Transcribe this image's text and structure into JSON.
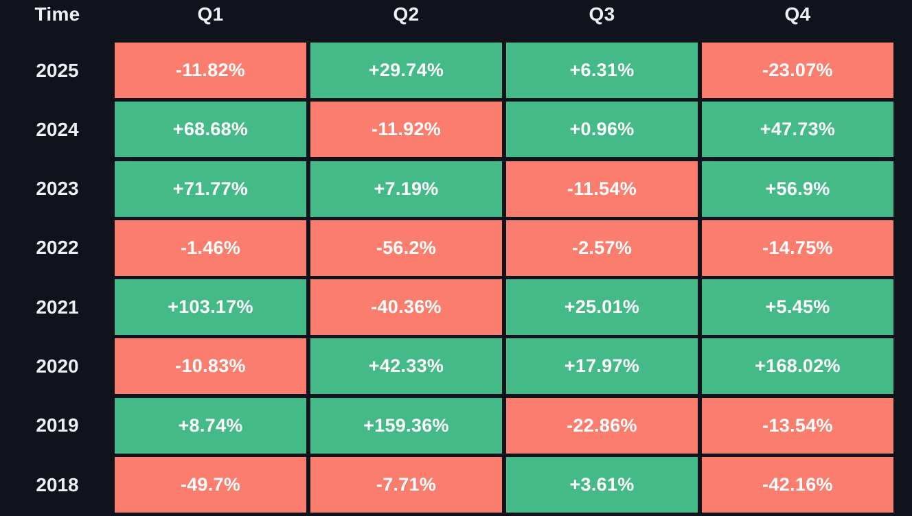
{
  "colors": {
    "background": "#10131c",
    "positive": "#45ba89",
    "negative": "#fa7d6e",
    "header_text": "#edf0f5",
    "cell_text": "#fdfefe"
  },
  "table": {
    "header": {
      "time_label": "Time",
      "quarters": [
        "Q1",
        "Q2",
        "Q3",
        "Q4"
      ]
    },
    "rows": [
      {
        "year": "2025",
        "cells": [
          {
            "text": "-11.82%",
            "sign": "neg"
          },
          {
            "text": "+29.74%",
            "sign": "pos"
          },
          {
            "text": "+6.31%",
            "sign": "pos"
          },
          {
            "text": "-23.07%",
            "sign": "neg"
          }
        ]
      },
      {
        "year": "2024",
        "cells": [
          {
            "text": "+68.68%",
            "sign": "pos"
          },
          {
            "text": "-11.92%",
            "sign": "neg"
          },
          {
            "text": "+0.96%",
            "sign": "pos"
          },
          {
            "text": "+47.73%",
            "sign": "pos"
          }
        ]
      },
      {
        "year": "2023",
        "cells": [
          {
            "text": "+71.77%",
            "sign": "pos"
          },
          {
            "text": "+7.19%",
            "sign": "pos"
          },
          {
            "text": "-11.54%",
            "sign": "neg"
          },
          {
            "text": "+56.9%",
            "sign": "pos"
          }
        ]
      },
      {
        "year": "2022",
        "cells": [
          {
            "text": "-1.46%",
            "sign": "neg"
          },
          {
            "text": "-56.2%",
            "sign": "neg"
          },
          {
            "text": "-2.57%",
            "sign": "neg"
          },
          {
            "text": "-14.75%",
            "sign": "neg"
          }
        ]
      },
      {
        "year": "2021",
        "cells": [
          {
            "text": "+103.17%",
            "sign": "pos"
          },
          {
            "text": "-40.36%",
            "sign": "neg"
          },
          {
            "text": "+25.01%",
            "sign": "pos"
          },
          {
            "text": "+5.45%",
            "sign": "pos"
          }
        ]
      },
      {
        "year": "2020",
        "cells": [
          {
            "text": "-10.83%",
            "sign": "neg"
          },
          {
            "text": "+42.33%",
            "sign": "pos"
          },
          {
            "text": "+17.97%",
            "sign": "pos"
          },
          {
            "text": "+168.02%",
            "sign": "pos"
          }
        ]
      },
      {
        "year": "2019",
        "cells": [
          {
            "text": "+8.74%",
            "sign": "pos"
          },
          {
            "text": "+159.36%",
            "sign": "pos"
          },
          {
            "text": "-22.86%",
            "sign": "neg"
          },
          {
            "text": "-13.54%",
            "sign": "neg"
          }
        ]
      },
      {
        "year": "2018",
        "cells": [
          {
            "text": "-49.7%",
            "sign": "neg"
          },
          {
            "text": "-7.71%",
            "sign": "neg"
          },
          {
            "text": "+3.61%",
            "sign": "pos"
          },
          {
            "text": "-42.16%",
            "sign": "neg"
          }
        ]
      }
    ]
  },
  "chart_data": {
    "type": "heatmap",
    "x_categories": [
      "Q1",
      "Q2",
      "Q3",
      "Q4"
    ],
    "y_categories": [
      "2025",
      "2024",
      "2023",
      "2022",
      "2021",
      "2020",
      "2019",
      "2018"
    ],
    "values_pct": [
      [
        -11.82,
        29.74,
        6.31,
        -23.07
      ],
      [
        68.68,
        -11.92,
        0.96,
        47.73
      ],
      [
        71.77,
        7.19,
        -11.54,
        56.9
      ],
      [
        -1.46,
        -56.2,
        -2.57,
        -14.75
      ],
      [
        103.17,
        -40.36,
        25.01,
        5.45
      ],
      [
        -10.83,
        42.33,
        17.97,
        168.02
      ],
      [
        8.74,
        159.36,
        -22.86,
        -13.54
      ],
      [
        -49.7,
        -7.71,
        3.61,
        -42.16
      ]
    ],
    "corner_label": "Time",
    "legend_position": "none",
    "grid": false,
    "color_positive": "#45ba89",
    "color_negative": "#fa7d6e"
  }
}
